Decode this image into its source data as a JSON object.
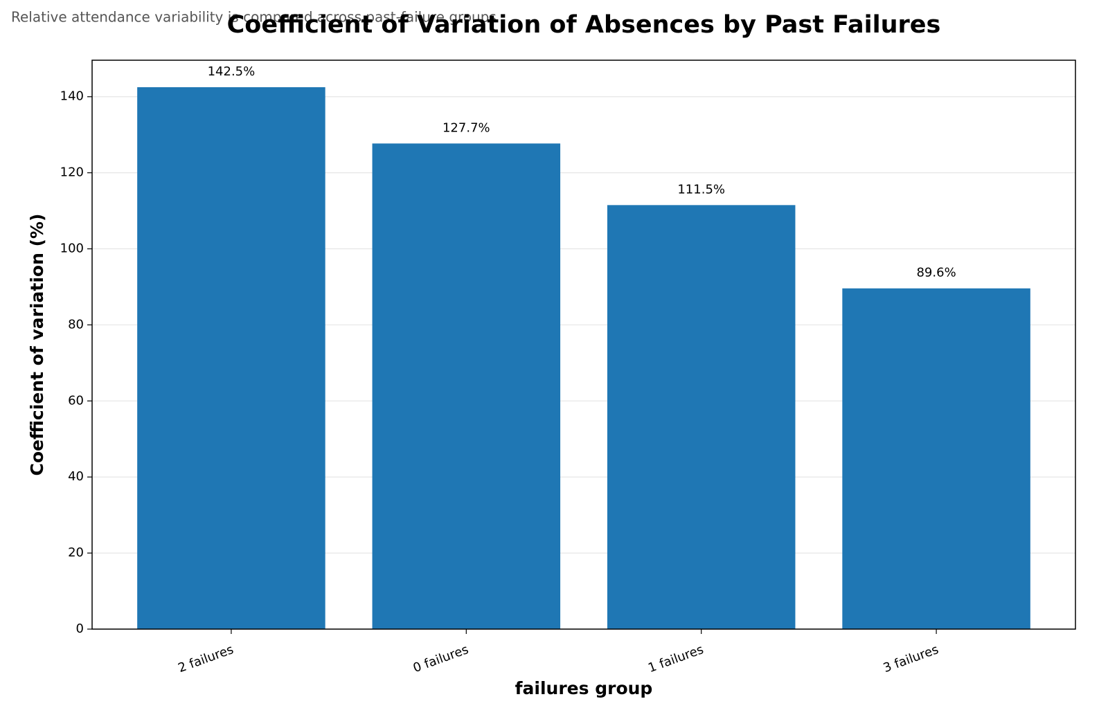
{
  "chart_data": {
    "type": "bar",
    "title": "Coefficient of Variation of Absences by Past Failures",
    "subtitle": "Relative attendance variability is compared across past-failure groups",
    "x_label": "failures group",
    "y_label": "Coefficient of variation (%)",
    "categories": [
      "2 failures",
      "0 failures",
      "1 failures",
      "3 failures"
    ],
    "values": [
      142.5,
      127.7,
      111.5,
      89.6
    ],
    "value_labels": [
      "142.5%",
      "127.7%",
      "111.5%",
      "89.6%"
    ],
    "color": "#1f77b4",
    "ylim": [
      0,
      149.6
    ],
    "yticks": [
      0,
      20,
      40,
      60,
      80,
      100,
      120,
      140
    ],
    "grid": true
  }
}
